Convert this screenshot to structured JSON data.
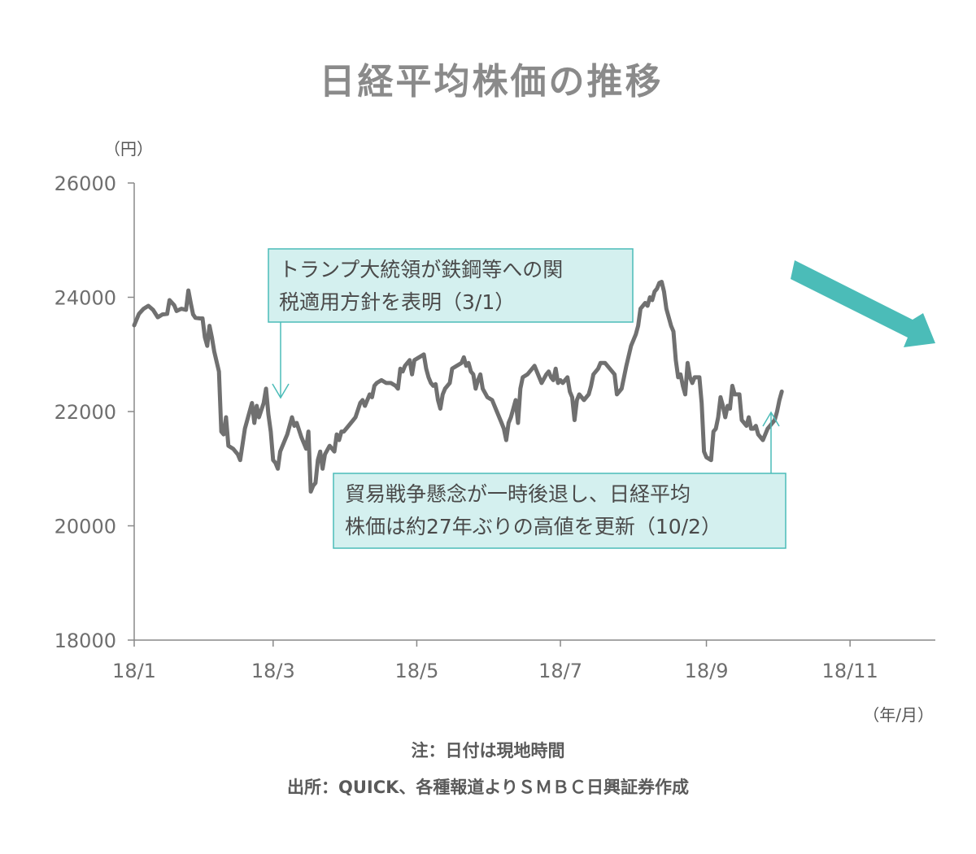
{
  "title": "日経平均株価の推移",
  "notes": {
    "note": "注：日付は現地時間",
    "source": "出所：QUICK、各種報道よりＳＭＢＣ日興証券作成"
  },
  "chart_data": {
    "type": "line",
    "title": "日経平均株価の推移",
    "ylabel": "（円）",
    "xlabel": "（年/月）",
    "ylim": [
      18000,
      26000
    ],
    "xlim": [
      0,
      334
    ],
    "y_ticks": [
      {
        "value": 18000,
        "label": "18000"
      },
      {
        "value": 20000,
        "label": "20000"
      },
      {
        "value": 22000,
        "label": "22000"
      },
      {
        "value": 24000,
        "label": "24000"
      },
      {
        "value": 26000,
        "label": "26000"
      }
    ],
    "x_ticks": [
      {
        "value": 0,
        "label": "18/1"
      },
      {
        "value": 59,
        "label": "18/3"
      },
      {
        "value": 120,
        "label": "18/5"
      },
      {
        "value": 181,
        "label": "18/7"
      },
      {
        "value": 243,
        "label": "18/9"
      },
      {
        "value": 304,
        "label": "18/11"
      }
    ],
    "grid": false,
    "legend": "none",
    "colors": {
      "line": "#707070",
      "annotation": "#4bbcb8",
      "annotation_fill": "#d4f0ef"
    },
    "series": [
      {
        "values": [
          [
            0,
            23510
          ],
          [
            2,
            23710
          ],
          [
            4,
            23800
          ],
          [
            6,
            23850
          ],
          [
            8,
            23780
          ],
          [
            10,
            23650
          ],
          [
            12,
            23700
          ],
          [
            14,
            23710
          ],
          [
            15,
            23950
          ],
          [
            17,
            23860
          ],
          [
            18,
            23760
          ],
          [
            20,
            23800
          ],
          [
            22,
            23780
          ],
          [
            23,
            24120
          ],
          [
            24,
            23900
          ],
          [
            25,
            23700
          ],
          [
            26,
            23640
          ],
          [
            28,
            23630
          ],
          [
            29,
            23630
          ],
          [
            30,
            23300
          ],
          [
            31,
            23150
          ],
          [
            32,
            23500
          ],
          [
            33,
            23300
          ],
          [
            34,
            23050
          ],
          [
            36,
            22700
          ],
          [
            37,
            21650
          ],
          [
            38,
            21600
          ],
          [
            39,
            21900
          ],
          [
            40,
            21400
          ],
          [
            42,
            21350
          ],
          [
            44,
            21250
          ],
          [
            45,
            21150
          ],
          [
            47,
            21700
          ],
          [
            49,
            22000
          ],
          [
            50,
            22150
          ],
          [
            51,
            21800
          ],
          [
            52,
            22100
          ],
          [
            53,
            21900
          ],
          [
            55,
            22150
          ],
          [
            56,
            22400
          ],
          [
            57,
            21950
          ],
          [
            58,
            21650
          ],
          [
            59,
            21150
          ],
          [
            60,
            21100
          ],
          [
            61,
            21000
          ],
          [
            62,
            21300
          ],
          [
            63,
            21400
          ],
          [
            65,
            21600
          ],
          [
            67,
            21900
          ],
          [
            68,
            21750
          ],
          [
            69,
            21800
          ],
          [
            71,
            21550
          ],
          [
            73,
            21350
          ],
          [
            74,
            21650
          ],
          [
            75,
            20600
          ],
          [
            76,
            20700
          ],
          [
            77,
            20750
          ],
          [
            78,
            21150
          ],
          [
            79,
            21300
          ],
          [
            80,
            21000
          ],
          [
            81,
            21250
          ],
          [
            83,
            21400
          ],
          [
            85,
            21300
          ],
          [
            86,
            21600
          ],
          [
            87,
            21500
          ],
          [
            88,
            21650
          ],
          [
            89,
            21650
          ],
          [
            91,
            21750
          ],
          [
            93,
            21850
          ],
          [
            94,
            21900
          ],
          [
            96,
            22150
          ],
          [
            97,
            22200
          ],
          [
            98,
            22100
          ],
          [
            100,
            22300
          ],
          [
            101,
            22250
          ],
          [
            102,
            22450
          ],
          [
            103,
            22500
          ],
          [
            105,
            22550
          ],
          [
            107,
            22500
          ],
          [
            109,
            22500
          ],
          [
            111,
            22450
          ],
          [
            112,
            22400
          ],
          [
            113,
            22750
          ],
          [
            114,
            22700
          ],
          [
            115,
            22800
          ],
          [
            117,
            22900
          ],
          [
            118,
            22650
          ],
          [
            119,
            22900
          ],
          [
            121,
            22950
          ],
          [
            123,
            23000
          ],
          [
            124,
            22750
          ],
          [
            125,
            22600
          ],
          [
            126,
            22500
          ],
          [
            127,
            22450
          ],
          [
            128,
            22480
          ],
          [
            129,
            22200
          ],
          [
            130,
            22050
          ],
          [
            131,
            22300
          ],
          [
            132,
            22400
          ],
          [
            134,
            22500
          ],
          [
            135,
            22750
          ],
          [
            137,
            22800
          ],
          [
            139,
            22850
          ],
          [
            140,
            22950
          ],
          [
            141,
            22800
          ],
          [
            142,
            22850
          ],
          [
            143,
            22700
          ],
          [
            144,
            22650
          ],
          [
            145,
            22400
          ],
          [
            146,
            22550
          ],
          [
            147,
            22650
          ],
          [
            148,
            22400
          ],
          [
            150,
            22250
          ],
          [
            152,
            22200
          ],
          [
            154,
            22000
          ],
          [
            156,
            21800
          ],
          [
            157,
            21700
          ],
          [
            158,
            21500
          ],
          [
            159,
            21800
          ],
          [
            160,
            21900
          ],
          [
            161,
            22050
          ],
          [
            162,
            22200
          ],
          [
            163,
            21800
          ],
          [
            164,
            22400
          ],
          [
            165,
            22600
          ],
          [
            167,
            22650
          ],
          [
            169,
            22750
          ],
          [
            170,
            22800
          ],
          [
            172,
            22600
          ],
          [
            173,
            22500
          ],
          [
            175,
            22650
          ],
          [
            176,
            22700
          ],
          [
            177,
            22600
          ],
          [
            178,
            22550
          ],
          [
            179,
            22750
          ],
          [
            180,
            22500
          ],
          [
            181,
            22550
          ],
          [
            182,
            22500
          ],
          [
            184,
            22600
          ],
          [
            185,
            22350
          ],
          [
            186,
            22250
          ],
          [
            187,
            21850
          ],
          [
            188,
            22200
          ],
          [
            189,
            22300
          ],
          [
            190,
            22250
          ],
          [
            191,
            22200
          ],
          [
            193,
            22300
          ],
          [
            194,
            22450
          ],
          [
            195,
            22650
          ],
          [
            197,
            22750
          ],
          [
            198,
            22850
          ],
          [
            200,
            22850
          ],
          [
            202,
            22750
          ],
          [
            203,
            22700
          ],
          [
            204,
            22650
          ],
          [
            205,
            22300
          ],
          [
            207,
            22400
          ],
          [
            208,
            22600
          ],
          [
            209,
            22800
          ],
          [
            211,
            23150
          ],
          [
            213,
            23350
          ],
          [
            214,
            23500
          ],
          [
            215,
            23800
          ],
          [
            217,
            23900
          ],
          [
            218,
            23850
          ],
          [
            219,
            24000
          ],
          [
            220,
            23950
          ],
          [
            221,
            24100
          ],
          [
            222,
            24150
          ],
          [
            223,
            24250
          ],
          [
            224,
            24270
          ],
          [
            225,
            24100
          ],
          [
            226,
            23800
          ],
          [
            227,
            23650
          ],
          [
            228,
            23500
          ],
          [
            229,
            23400
          ],
          [
            230,
            22900
          ],
          [
            231,
            22600
          ],
          [
            232,
            22650
          ],
          [
            233,
            22450
          ],
          [
            234,
            22300
          ],
          [
            235,
            22850
          ],
          [
            236,
            22600
          ],
          [
            237,
            22500
          ],
          [
            238,
            22600
          ],
          [
            240,
            22600
          ],
          [
            241,
            22150
          ],
          [
            242,
            21300
          ],
          [
            243,
            21200
          ],
          [
            245,
            21150
          ],
          [
            246,
            21650
          ],
          [
            247,
            21700
          ],
          [
            248,
            21900
          ],
          [
            249,
            22250
          ],
          [
            250,
            22100
          ],
          [
            251,
            21900
          ],
          [
            252,
            22100
          ],
          [
            253,
            22050
          ],
          [
            254,
            22450
          ],
          [
            255,
            22300
          ],
          [
            257,
            22300
          ],
          [
            258,
            21850
          ],
          [
            259,
            21800
          ],
          [
            260,
            21750
          ],
          [
            261,
            21900
          ],
          [
            262,
            21700
          ],
          [
            263,
            21700
          ],
          [
            264,
            21750
          ],
          [
            265,
            21600
          ],
          [
            266,
            21550
          ],
          [
            267,
            21500
          ],
          [
            268,
            21600
          ],
          [
            269,
            21700
          ],
          [
            270,
            21750
          ],
          [
            271,
            21800
          ],
          [
            272,
            21850
          ],
          [
            273,
            22000
          ],
          [
            274,
            22200
          ],
          [
            275,
            22350
          ]
        ]
      }
    ],
    "annotations": [
      {
        "lines": [
          "トランプ大統領が鉄鋼等への関",
          "税適用方針を表明（3/1）"
        ],
        "point": [
          59,
          22200
        ]
      },
      {
        "lines": [
          "貿易戦争懸念が一時後退し、日経平均",
          "株価は約27年ぶりの高値を更新（10/2）"
        ],
        "point": [
          274,
          22000
        ]
      }
    ]
  }
}
